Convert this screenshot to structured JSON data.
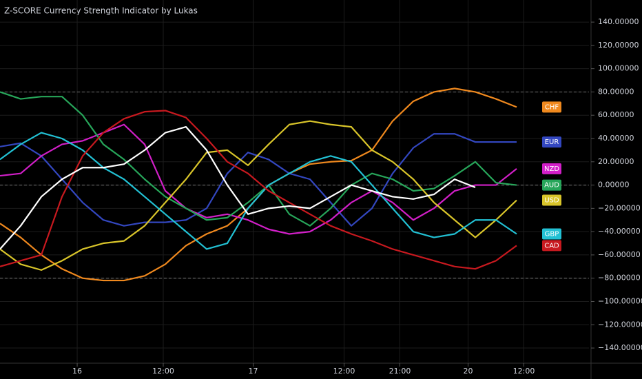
{
  "chart_data": {
    "type": "line",
    "title": "Z-SCORE Currency Strength Indicator by Lukas",
    "x": [
      0,
      2,
      4,
      6,
      8,
      10,
      12,
      14,
      16,
      18,
      20,
      22,
      24,
      26,
      28,
      30,
      32,
      34,
      36,
      38,
      40,
      42,
      44,
      46,
      48,
      50
    ],
    "xlim": [
      0,
      57
    ],
    "xticks": [
      {
        "value": 7.47,
        "label": "16"
      },
      {
        "value": 15.8,
        "label": "12:00"
      },
      {
        "value": 24.5,
        "label": "17"
      },
      {
        "value": 33.3,
        "label": "12:00"
      },
      {
        "value": 38.7,
        "label": "21:00"
      },
      {
        "value": 45.3,
        "label": "20"
      },
      {
        "value": 50.7,
        "label": "12:00"
      }
    ],
    "ylim": [
      -153,
      159
    ],
    "yticks": [
      {
        "value": 140,
        "label": "140.00000"
      },
      {
        "value": 120,
        "label": "120.00000"
      },
      {
        "value": 100,
        "label": "100.00000"
      },
      {
        "value": 80,
        "label": "80.00000"
      },
      {
        "value": 60,
        "label": "60.00000"
      },
      {
        "value": 40,
        "label": "40.00000"
      },
      {
        "value": 20,
        "label": "20.00000"
      },
      {
        "value": 0,
        "label": "0.00000"
      },
      {
        "value": -20,
        "label": "−20.00000"
      },
      {
        "value": -40,
        "label": "−40.00000"
      },
      {
        "value": -60,
        "label": "−60.00000"
      },
      {
        "value": -80,
        "label": "−80.00000"
      },
      {
        "value": -100,
        "label": "−100.00000"
      },
      {
        "value": -120,
        "label": "−120.00000"
      },
      {
        "value": -140,
        "label": "−140.00000"
      }
    ],
    "hlines": [
      80,
      0,
      -80
    ],
    "grid": true,
    "series": [
      {
        "name": "CHF",
        "color": "#f0891e",
        "values": [
          -33,
          -45,
          -60,
          -72,
          -80,
          -82,
          -82,
          -78,
          -68,
          -52,
          -42,
          -35,
          -20,
          0,
          10,
          18,
          20,
          21,
          30,
          55,
          72,
          80,
          83,
          80,
          74,
          67
        ]
      },
      {
        "name": "EUR",
        "color": "#3347c0",
        "values": [
          33,
          36,
          25,
          5,
          -15,
          -30,
          -35,
          -32,
          -32,
          -30,
          -20,
          10,
          28,
          22,
          10,
          5,
          -15,
          -35,
          -20,
          10,
          32,
          44,
          44,
          37,
          37,
          37
        ]
      },
      {
        "name": "NZD",
        "color": "#d21fc8",
        "values": [
          8,
          10,
          25,
          35,
          38,
          45,
          52,
          35,
          -5,
          -20,
          -28,
          -25,
          -30,
          -38,
          -42,
          -40,
          -30,
          -15,
          -5,
          -15,
          -30,
          -20,
          -5,
          0,
          0,
          14
        ]
      },
      {
        "name": "AUD",
        "color": "#27a65a",
        "values": [
          80,
          74,
          76,
          76,
          60,
          35,
          22,
          5,
          -10,
          -20,
          -30,
          -28,
          -15,
          0,
          -25,
          -35,
          -20,
          0,
          10,
          5,
          -5,
          -3,
          8,
          20,
          2,
          0
        ]
      },
      {
        "name": "USD",
        "color": "#d9c52a",
        "values": [
          -55,
          -68,
          -73,
          -65,
          -55,
          -50,
          -48,
          -35,
          -15,
          5,
          28,
          30,
          17,
          35,
          52,
          55,
          52,
          50,
          30,
          20,
          5,
          -15,
          -30,
          -45,
          -30,
          -13
        ]
      },
      {
        "name": "GBP",
        "color": "#22c1d4",
        "values": [
          22,
          35,
          45,
          40,
          30,
          15,
          5,
          -10,
          -25,
          -40,
          -55,
          -50,
          -20,
          0,
          10,
          20,
          25,
          20,
          0,
          -20,
          -40,
          -45,
          -42,
          -30,
          -30,
          -42
        ]
      },
      {
        "name": "CAD",
        "color": "#c8191f",
        "values": [
          -70,
          -65,
          -60,
          -10,
          25,
          45,
          57,
          63,
          64,
          58,
          40,
          20,
          10,
          -5,
          -15,
          -25,
          -35,
          -42,
          -48,
          -55,
          -60,
          -65,
          -70,
          -72,
          -65,
          -52
        ]
      },
      {
        "color": "#ffffff",
        "values": [
          -55,
          -35,
          -10,
          5,
          15,
          15,
          18,
          30,
          45,
          50,
          30,
          0,
          -25,
          -20,
          -18,
          -20,
          -10,
          0,
          -5,
          -10,
          -12,
          -8,
          5,
          -2,
          null,
          null
        ]
      }
    ]
  }
}
